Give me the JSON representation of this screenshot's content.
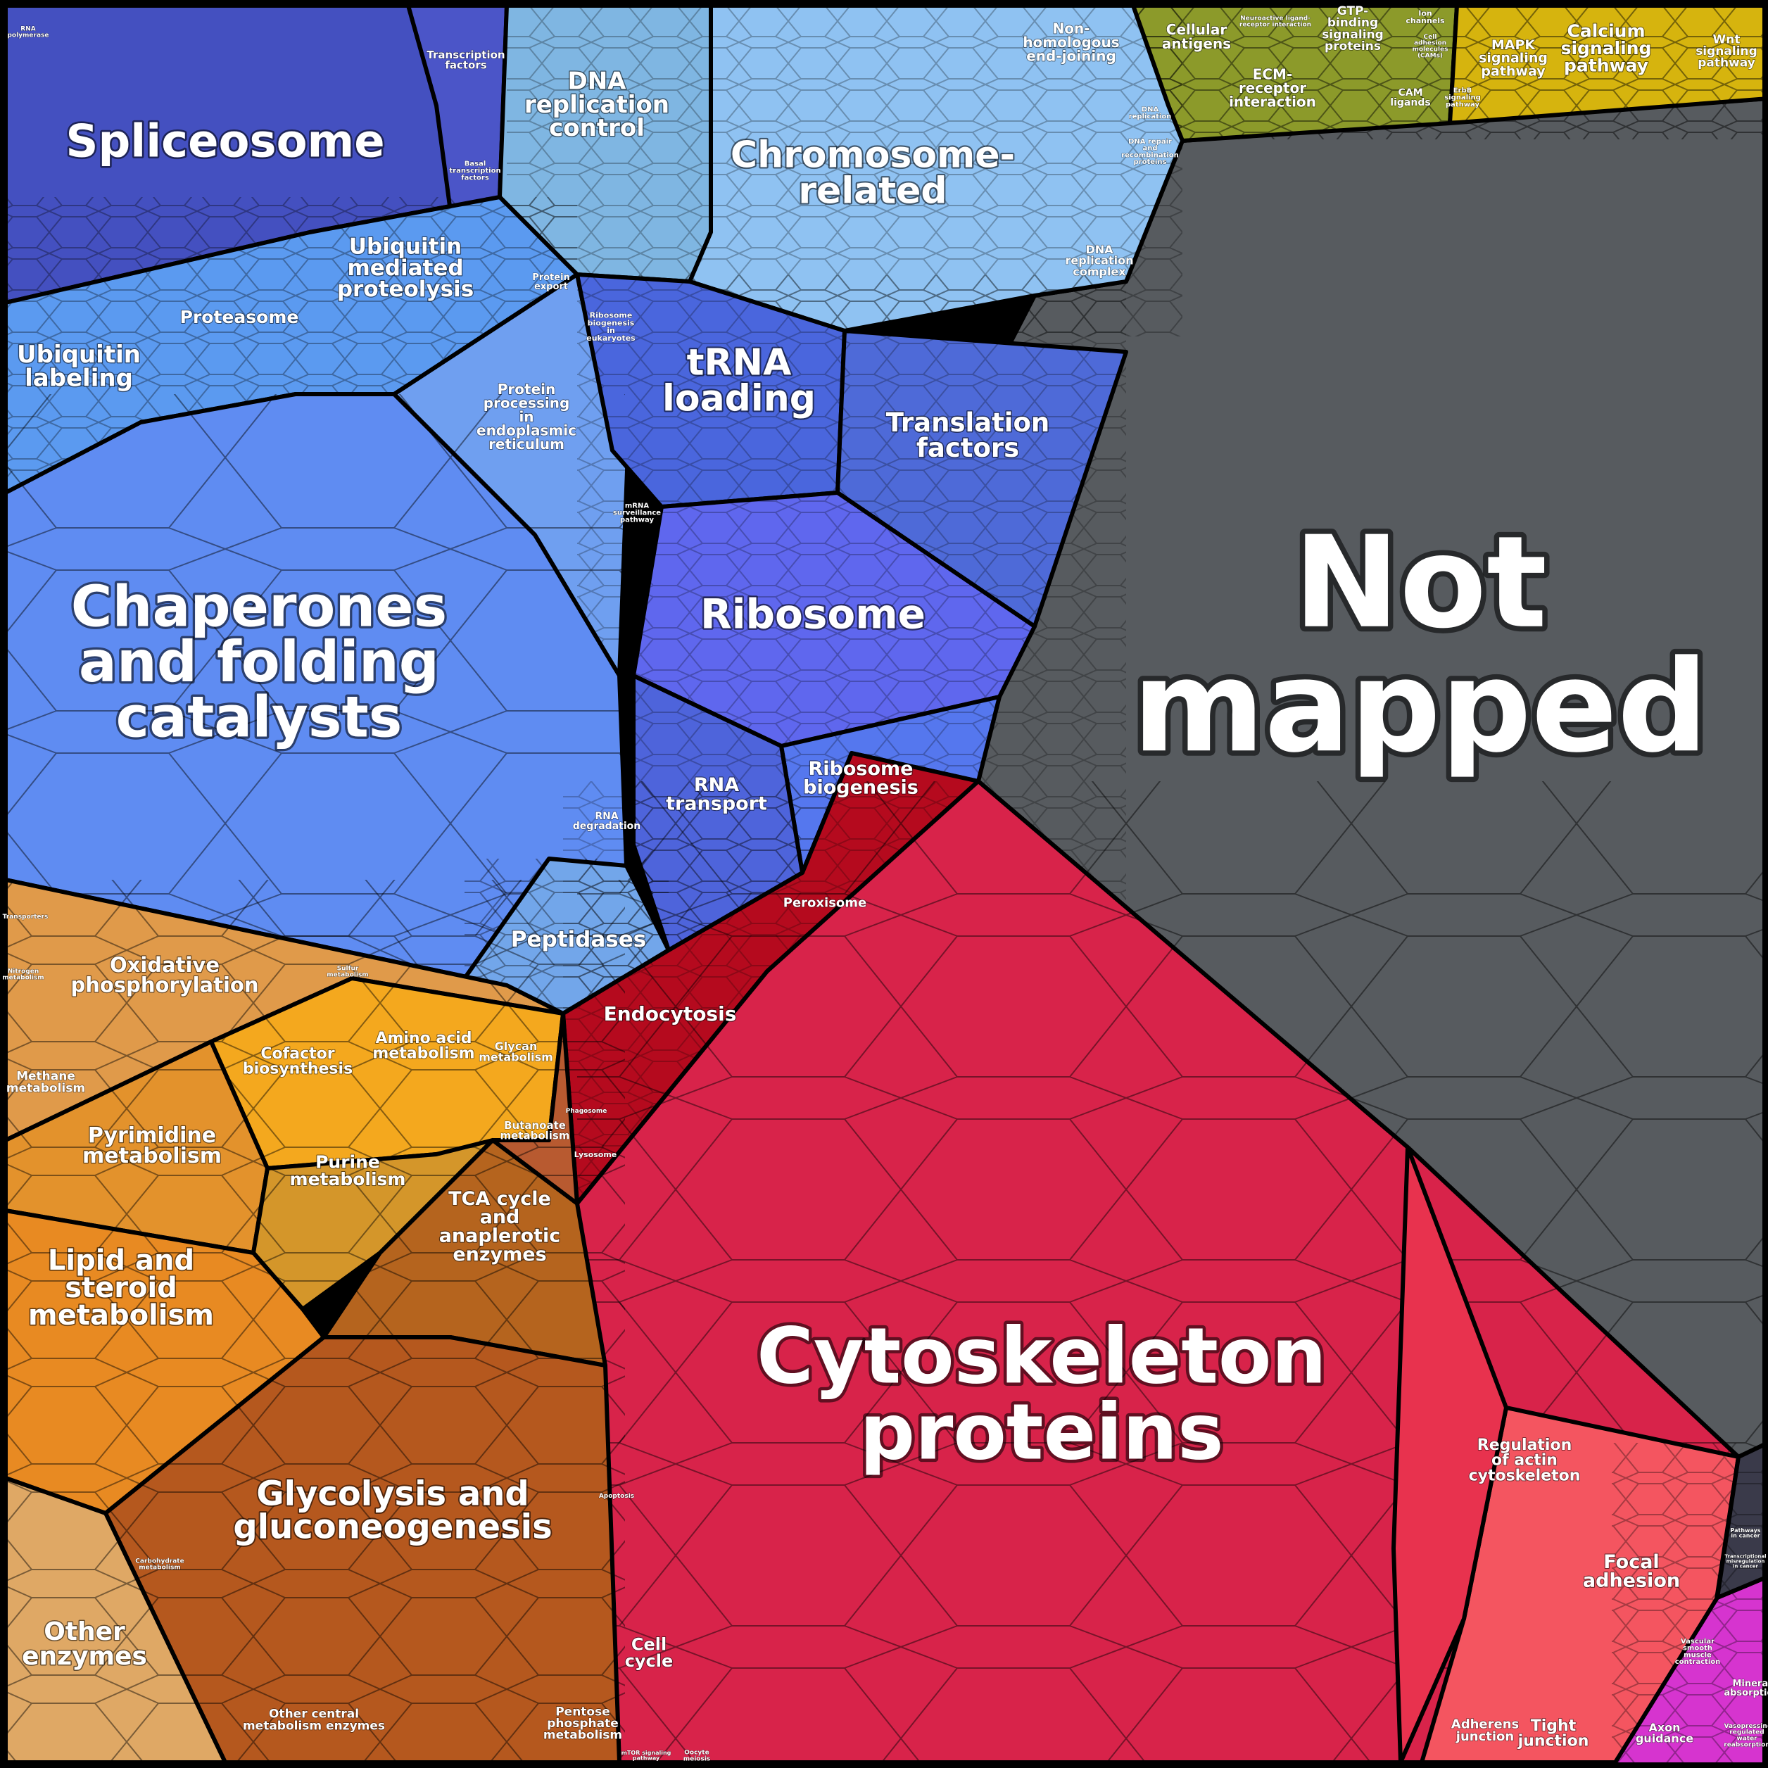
{
  "labels": {
    "spliceosome": [
      "Spliceosome"
    ],
    "transcription_factors": [
      "Transcription",
      "factors"
    ],
    "basal_transcription_factors": [
      "Basal",
      "transcription",
      "factors"
    ],
    "rna_polymerase": [
      "RNA",
      "polymerase"
    ],
    "dna_replication_control": [
      "DNA",
      "replication",
      "control"
    ],
    "chromosome_related": [
      "Chromosome-",
      "related"
    ],
    "non_homologous_end_joining": [
      "Non-",
      "homologous",
      "end-joining"
    ],
    "dna_replication": [
      "DNA",
      "replication"
    ],
    "dna_repair": [
      "DNA repair",
      "and",
      "recombination",
      "proteins"
    ],
    "dna_replication_complex": [
      "DNA",
      "replication",
      "complex"
    ],
    "cellular_antigens": [
      "Cellular",
      "antigens"
    ],
    "neuroactive_ligand": [
      "Neuroactive ligand-",
      "receptor interaction"
    ],
    "ecm_receptor": [
      "ECM-",
      "receptor",
      "interaction"
    ],
    "gtp_binding": [
      "GTP-",
      "binding",
      "signaling",
      "proteins"
    ],
    "ion_channels": [
      "Ion",
      "channels"
    ],
    "cell_adhesion_molecules": [
      "Cell",
      "adhesion",
      "molecules",
      "(CAMs)"
    ],
    "cam_ligands": [
      "CAM",
      "ligands"
    ],
    "erbb_signaling": [
      "ErbB",
      "signaling",
      "pathway"
    ],
    "mapk_signaling": [
      "MAPK",
      "signaling",
      "pathway"
    ],
    "calcium_signaling": [
      "Calcium",
      "signaling",
      "pathway"
    ],
    "wnt_signaling": [
      "Wnt",
      "signaling",
      "pathway"
    ],
    "ubiquitin_labeling": [
      "Ubiquitin",
      "labeling"
    ],
    "proteasome": [
      "Proteasome"
    ],
    "ubiquitin_mediated_proteolysis": [
      "Ubiquitin",
      "mediated",
      "proteolysis"
    ],
    "protein_export": [
      "Protein",
      "export"
    ],
    "protein_processing_er": [
      "Protein",
      "processing",
      "in",
      "endoplasmic",
      "reticulum"
    ],
    "ribosome_biogenesis_eukaryotes": [
      "Ribosome",
      "biogenesis",
      "in",
      "eukaryotes"
    ],
    "trna_loading": [
      "tRNA",
      "loading"
    ],
    "translation_factors": [
      "Translation",
      "factors"
    ],
    "mrna_surveillance": [
      "mRNA",
      "surveillance",
      "pathway"
    ],
    "ribosome": [
      "Ribosome"
    ],
    "chaperones": [
      "Chaperones",
      "and folding",
      "catalysts"
    ],
    "rna_degradation": [
      "RNA",
      "degradation"
    ],
    "rna_transport": [
      "RNA",
      "transport"
    ],
    "ribosome_biogenesis": [
      "Ribosome",
      "biogenesis"
    ],
    "peptidases": [
      "Peptidases"
    ],
    "not_mapped": [
      "Not",
      "mapped"
    ],
    "peroxisome": [
      "Peroxisome"
    ],
    "endocytosis": [
      "Endocytosis"
    ],
    "phagosome": [
      "Phagosome"
    ],
    "lysosome": [
      "Lysosome"
    ],
    "transporters": [
      "Transporters"
    ],
    "oxidative_phosphorylation": [
      "Oxidative",
      "phosphorylation"
    ],
    "nitrogen_metabolism": [
      "Nitrogen",
      "metabolism"
    ],
    "methane_metabolism": [
      "Methane",
      "metabolism"
    ],
    "sulfur_metabolism": [
      "Sulfur",
      "metabolism"
    ],
    "cofactor_biosynthesis": [
      "Cofactor",
      "biosynthesis"
    ],
    "amino_acid_metabolism": [
      "Amino acid",
      "metabolism"
    ],
    "glycan_metabolism": [
      "Glycan",
      "metabolism"
    ],
    "pyrimidine_metabolism": [
      "Pyrimidine",
      "metabolism"
    ],
    "purine_metabolism": [
      "Purine",
      "metabolism"
    ],
    "butanoate_metabolism": [
      "Butanoate",
      "metabolism"
    ],
    "tca_cycle": [
      "TCA cycle",
      "and",
      "anaplerotic",
      "enzymes"
    ],
    "lipid_steroid_metabolism": [
      "Lipid and",
      "steroid",
      "metabolism"
    ],
    "glycolysis": [
      "Glycolysis and",
      "gluconeogenesis"
    ],
    "carbohydrate_metabolism": [
      "Carbohydrate",
      "metabolism"
    ],
    "other_enzymes": [
      "Other",
      "enzymes"
    ],
    "other_central_metabolism": [
      "Other central",
      "metabolism enzymes"
    ],
    "pentose_phosphate": [
      "Pentose",
      "phosphate",
      "metabolism"
    ],
    "cytoskeleton_proteins": [
      "Cytoskeleton",
      "proteins"
    ],
    "apoptosis": [
      "Apoptosis"
    ],
    "cell_cycle": [
      "Cell",
      "cycle"
    ],
    "mtor_signaling": [
      "mTOR signaling",
      "pathway"
    ],
    "oocyte_meiosis": [
      "Oocyte",
      "meiosis"
    ],
    "regulation_actin": [
      "Regulation",
      "of actin",
      "cytoskeleton"
    ],
    "focal_adhesion": [
      "Focal",
      "adhesion"
    ],
    "adherens_junction": [
      "Adherens",
      "junction"
    ],
    "tight_junction": [
      "Tight",
      "junction"
    ],
    "pathways_in_cancer": [
      "Pathways",
      "in cancer"
    ],
    "transcriptional_misregulation": [
      "Transcriptional",
      "misregulation",
      "in cancer"
    ],
    "vascular_smooth_muscle": [
      "Vascular",
      "smooth",
      "muscle",
      "contraction"
    ],
    "mineral_absorption": [
      "Mineral",
      "absorption"
    ],
    "axon_guidance": [
      "Axon",
      "guidance"
    ],
    "vasopressin_water": [
      "Vasopressin-",
      "regulated",
      "water",
      "reabsorption"
    ]
  },
  "colors": {
    "not_mapped": "#575b5f",
    "genetic_info_dark": "#4450c0",
    "genetic_info_light": "#8fc2f2",
    "proteins_blue": "#5f8cf2",
    "cytoskeleton_red": "#d8234a",
    "endocytosis_red": "#b50a1e",
    "metabolism_orange": "#e08a30",
    "glycolysis_brown": "#b5581e",
    "signaling_olive": "#8c9a2a",
    "signaling_yellow": "#d6b40e",
    "magenta": "#d634cf"
  }
}
